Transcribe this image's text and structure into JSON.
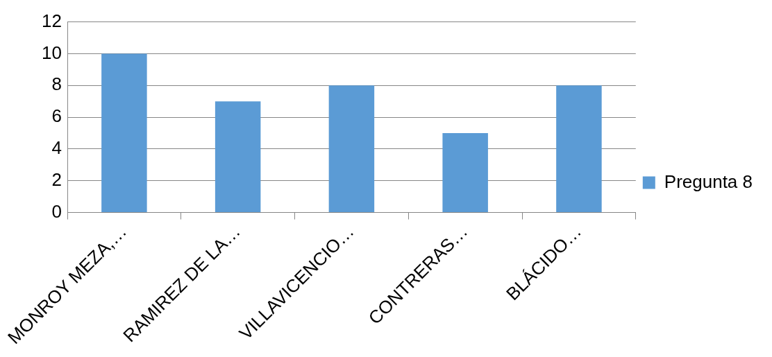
{
  "chart_data": {
    "type": "bar",
    "categories": [
      "MONROY MEZA,…",
      "RAMIREZ DE LA…",
      "VILLAVICENCIO…",
      "CONTRERAS…",
      "BLÁCIDO…"
    ],
    "series": [
      {
        "name": "Pregunta 8",
        "color": "#5b9bd5",
        "values": [
          10,
          7,
          8,
          5,
          8
        ]
      }
    ],
    "ylim": [
      0,
      12
    ],
    "yticks": [
      0,
      2,
      4,
      6,
      8,
      10,
      12
    ],
    "grid": "y",
    "legend": "right"
  }
}
